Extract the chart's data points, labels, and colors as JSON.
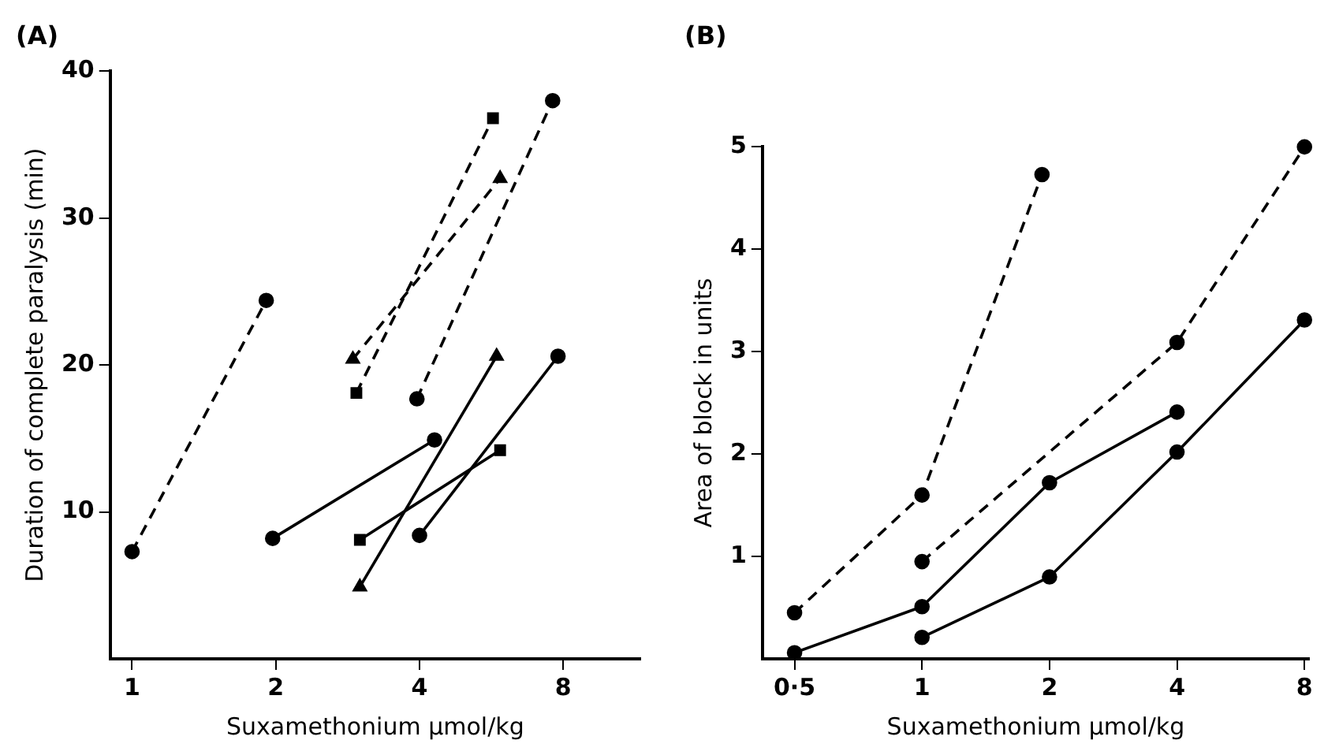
{
  "chart_data": [
    {
      "type": "line",
      "title": "(A)",
      "xlabel": "Suxamethonium μmol/kg",
      "ylabel": "Duration of complete paralysis (min)",
      "log": "x",
      "xlim": [
        0.9,
        11.6
      ],
      "xticks": [
        1,
        2,
        4,
        8
      ],
      "ylim": [
        0,
        40
      ],
      "yticks": [
        10,
        20,
        30,
        40
      ],
      "series": [
        {
          "color": "#000000",
          "marker": "circle",
          "line_style": "dashed",
          "x": [
            1,
            1.91
          ],
          "values": [
            7.3,
            24.4
          ]
        },
        {
          "color": "#000000",
          "marker": "circle",
          "line_style": "solid",
          "x": [
            1.97,
            4.3
          ],
          "values": [
            8.2,
            14.9
          ]
        },
        {
          "color": "#000000",
          "marker": "square",
          "line_style": "dashed",
          "x": [
            2.95,
            5.7
          ],
          "values": [
            18.1,
            36.8
          ]
        },
        {
          "color": "#000000",
          "marker": "square",
          "line_style": "solid",
          "x": [
            3,
            5.9
          ],
          "values": [
            8.1,
            14.2
          ]
        },
        {
          "color": "#000000",
          "marker": "triangle",
          "line_style": "dashed",
          "x": [
            2.9,
            5.9
          ],
          "values": [
            20.4,
            32.7
          ]
        },
        {
          "color": "#000000",
          "marker": "triangle",
          "line_style": "solid",
          "x": [
            3,
            5.8
          ],
          "values": [
            4.9,
            20.6
          ]
        },
        {
          "color": "#000000",
          "marker": "circle",
          "line_style": "dashed",
          "x": [
            3.95,
            7.6
          ],
          "values": [
            17.7,
            38
          ]
        },
        {
          "color": "#000000",
          "marker": "circle",
          "line_style": "solid",
          "x": [
            4,
            7.8
          ],
          "values": [
            8.4,
            20.6
          ]
        }
      ]
    },
    {
      "type": "line",
      "title": "(B)",
      "xlabel": "Suxamethonium μmol/kg",
      "ylabel": "Area of block in units",
      "log": "x",
      "xlim": [
        0.42,
        8.2
      ],
      "xticks": [
        {
          "value": 0.5,
          "label": "0·5"
        },
        1,
        2,
        4,
        8
      ],
      "ylim": [
        0,
        5
      ],
      "yticks": [
        1,
        2,
        3,
        4,
        5
      ],
      "series": [
        {
          "color": "#000000",
          "marker": "circle",
          "line_style": "dashed",
          "x": [
            0.5,
            1,
            1.92
          ],
          "values": [
            0.45,
            1.6,
            4.73
          ]
        },
        {
          "color": "#000000",
          "marker": "circle",
          "line_style": "solid",
          "x": [
            0.5,
            1,
            2,
            4
          ],
          "values": [
            0.06,
            0.51,
            1.72,
            2.41
          ]
        },
        {
          "color": "#000000",
          "marker": "circle",
          "line_style": "dashed",
          "x": [
            1,
            4,
            8
          ],
          "values": [
            0.95,
            3.09,
            5
          ]
        },
        {
          "color": "#000000",
          "marker": "circle",
          "line_style": "solid",
          "x": [
            1,
            2,
            4,
            8
          ],
          "values": [
            0.21,
            0.8,
            2.02,
            3.31
          ]
        }
      ]
    }
  ]
}
